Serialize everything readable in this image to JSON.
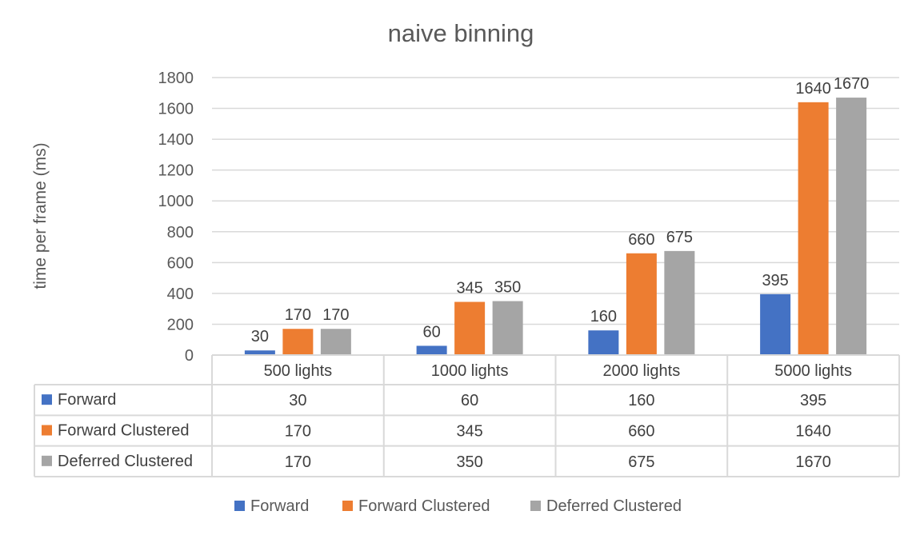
{
  "chart_data": {
    "type": "bar",
    "title": "naive binning",
    "xlabel": "",
    "ylabel": "time per frame (ms)",
    "ylim": [
      0,
      1800
    ],
    "yticks": [
      0,
      200,
      400,
      600,
      800,
      1000,
      1200,
      1400,
      1600,
      1800
    ],
    "categories": [
      "500 lights",
      "1000 lights",
      "2000 lights",
      "5000 lights"
    ],
    "series": [
      {
        "name": "Forward",
        "color": "#4472c4",
        "values": [
          30,
          60,
          160,
          395
        ]
      },
      {
        "name": "Forward Clustered",
        "color": "#ed7d31",
        "values": [
          170,
          345,
          660,
          1640
        ]
      },
      {
        "name": "Deferred Clustered",
        "color": "#a5a5a5",
        "values": [
          170,
          350,
          675,
          1670
        ]
      }
    ],
    "grid": true,
    "data_labels": true,
    "data_table": true,
    "legend": "bottom"
  }
}
